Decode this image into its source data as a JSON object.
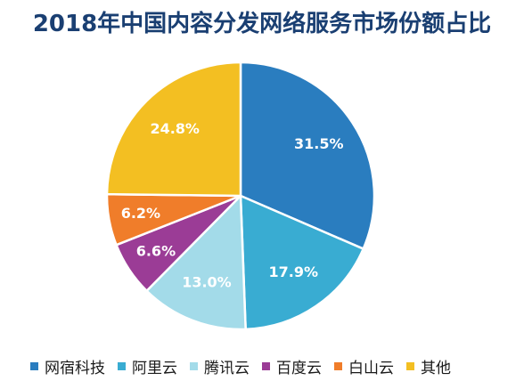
{
  "chart_data": {
    "type": "pie",
    "title": "2018年中国内容分发网络服务市场份额占比",
    "slices": [
      {
        "label": "网宿科技",
        "value": 31.5,
        "display": "31.5%",
        "color": "#2a7dbf"
      },
      {
        "label": "阿里云",
        "value": 17.9,
        "display": "17.9%",
        "color": "#39acd2"
      },
      {
        "label": "腾讯云",
        "value": 13.0,
        "display": "13.0%",
        "color": "#a3dbe9"
      },
      {
        "label": "百度云",
        "value": 6.6,
        "display": "6.6%",
        "color": "#9b3c96"
      },
      {
        "label": "白山云",
        "value": 6.2,
        "display": "6.2%",
        "color": "#f07d2a"
      },
      {
        "label": "其他",
        "value": 24.8,
        "display": "24.8%",
        "color": "#f3bf22"
      }
    ],
    "legend_position": "bottom",
    "start_angle_deg": 0,
    "direction": "clockwise",
    "label_color": "#ffffff",
    "slice_separator_color": "#ffffff"
  }
}
